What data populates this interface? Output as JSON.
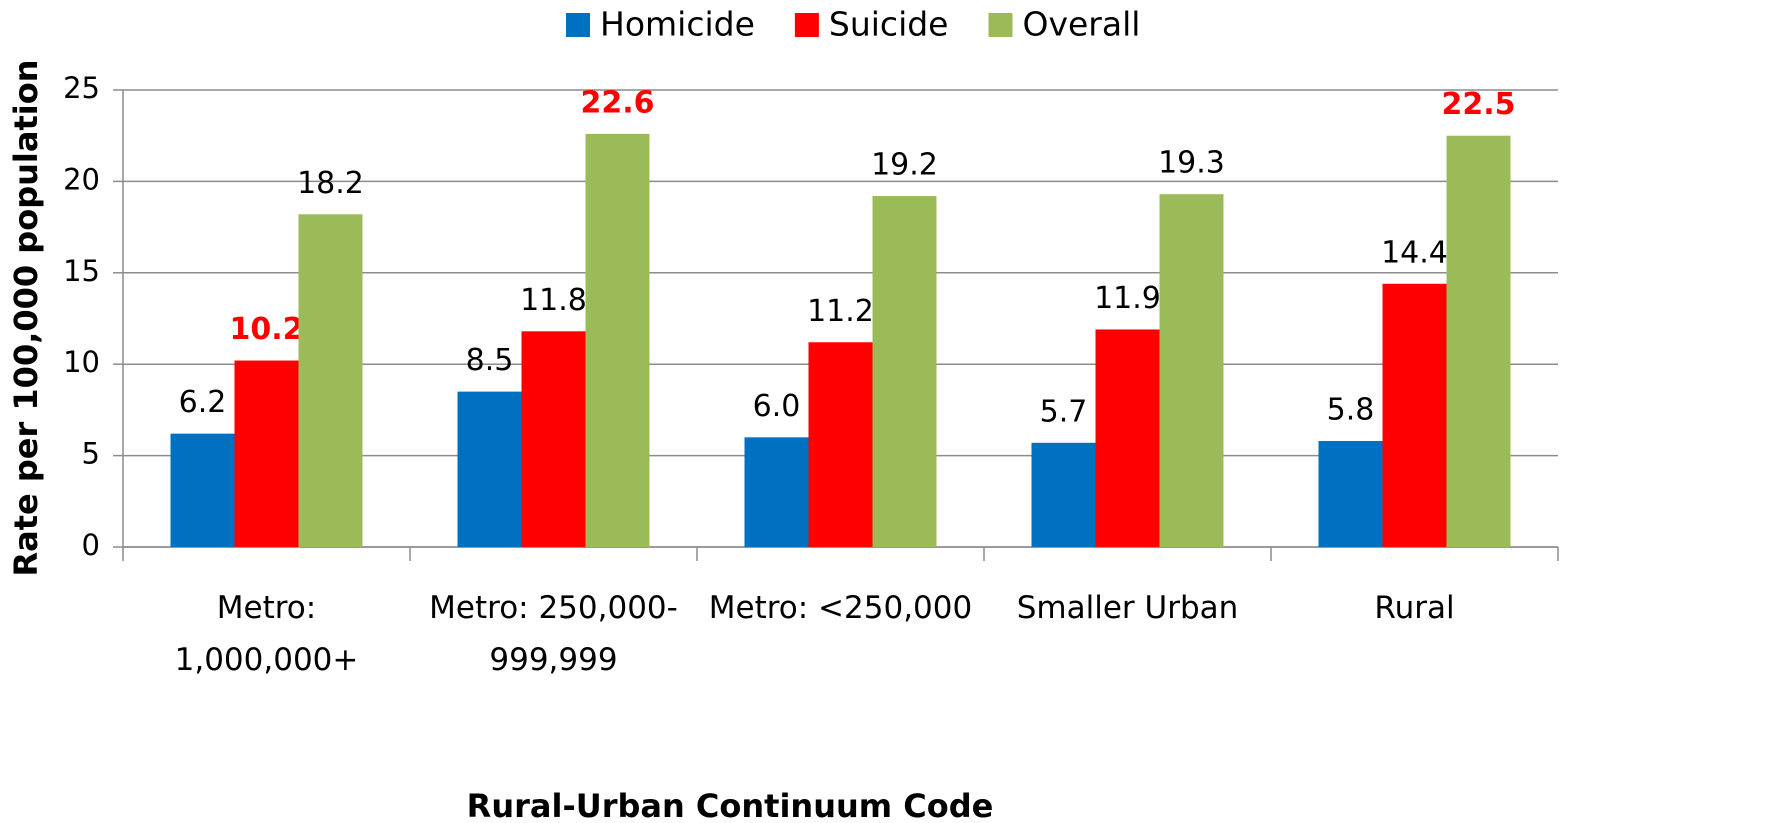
{
  "chart_data": {
    "type": "bar",
    "x_label": "Rural-Urban Continuum Code",
    "y_label": "Rate per 100,000 population",
    "categories": [
      "Metro: 1,000,000+",
      "Metro: 250,000-999,999",
      "Metro: <250,000",
      "Smaller Urban",
      "Rural"
    ],
    "series": [
      {
        "name": "Homicide",
        "color": "#0070c0",
        "values": [
          6.2,
          8.5,
          6.0,
          5.7,
          5.8
        ],
        "value_labels": [
          "6.2",
          "8.5",
          "6.0",
          "5.7",
          "5.8"
        ],
        "highlighted": []
      },
      {
        "name": "Suicide",
        "color": "#ff0000",
        "values": [
          10.2,
          11.8,
          11.2,
          11.9,
          14.4
        ],
        "value_labels": [
          "10.2",
          "11.8",
          "11.2",
          "11.9",
          "14.4"
        ],
        "highlighted": [
          0
        ]
      },
      {
        "name": "Overall",
        "color": "#9bbb59",
        "values": [
          18.2,
          22.6,
          19.2,
          19.3,
          22.5
        ],
        "value_labels": [
          "18.2",
          "22.6",
          "19.2",
          "19.3",
          "22.5"
        ],
        "highlighted": [
          1,
          4
        ]
      }
    ],
    "highlight_color": "#ff0000",
    "ylim": [
      0,
      25
    ],
    "yticks": [
      0,
      5,
      10,
      15,
      20,
      25
    ],
    "grid": true,
    "legend": "top"
  }
}
